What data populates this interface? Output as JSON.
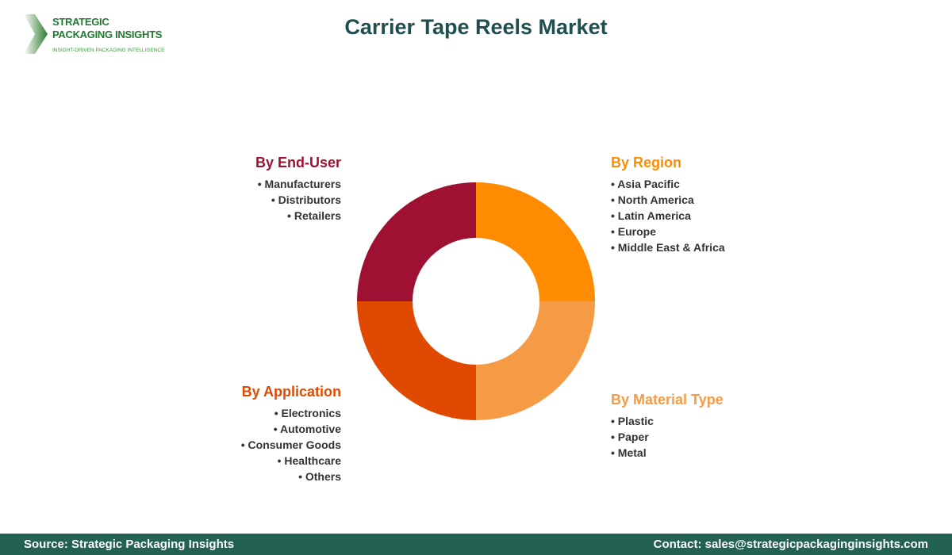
{
  "logo": {
    "line1": "STRATEGIC",
    "line2": "PACKAGING INSIGHTS",
    "tagline": "INSIGHT-DRIVEN PACKAGING INTELLIGENCE"
  },
  "title": "Carrier Tape Reels Market",
  "segments": [
    {
      "heading": "By Region",
      "color": "#FF8C00",
      "items": [
        "Asia Pacific",
        "North America",
        "Latin America",
        "Europe",
        "Middle East & Africa"
      ]
    },
    {
      "heading": "By Material Type",
      "color": "#F59B45",
      "items": [
        "Plastic",
        "Paper",
        "Metal"
      ]
    },
    {
      "heading": "By Application",
      "color": "#E04A00",
      "items": [
        "Electronics",
        "Automotive",
        "Consumer Goods",
        "Healthcare",
        "Others"
      ]
    },
    {
      "heading": "By End-User",
      "color": "#9E1133",
      "items": [
        "Manufacturers",
        "Distributors",
        "Retailers"
      ]
    }
  ],
  "footer": {
    "source": "Source: Strategic Packaging Insights",
    "contact": "Contact: sales@strategicpackaginginsights.com"
  }
}
